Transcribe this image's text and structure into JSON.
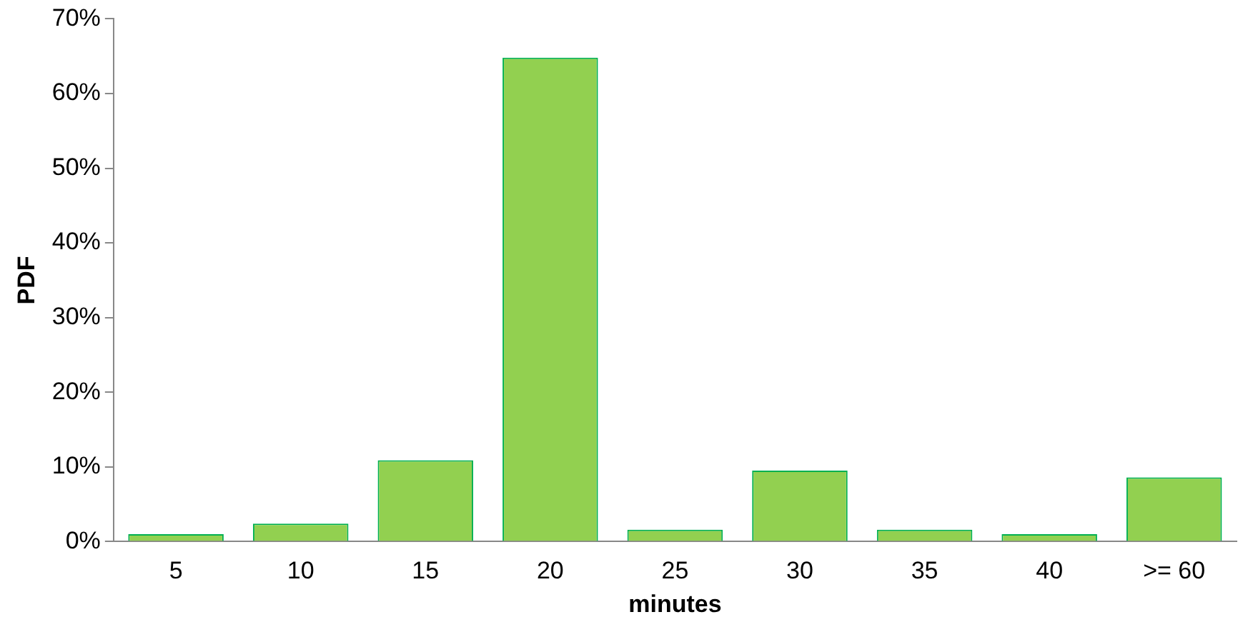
{
  "chart_data": {
    "type": "bar",
    "xlabel": "minutes",
    "ylabel": "PDF",
    "categories": [
      "5",
      "10",
      "15",
      "20",
      "25",
      "30",
      "35",
      "40",
      ">= 60"
    ],
    "values": [
      1.0,
      2.4,
      10.9,
      64.8,
      1.6,
      9.5,
      1.6,
      1.0,
      8.6
    ],
    "color": "#92d050",
    "ylim": [
      0,
      70
    ],
    "yticks": [
      {
        "value": 0,
        "label": "0%"
      },
      {
        "value": 10,
        "label": "10%"
      },
      {
        "value": 20,
        "label": "20%"
      },
      {
        "value": 30,
        "label": "30%"
      },
      {
        "value": 40,
        "label": "40%"
      },
      {
        "value": 50,
        "label": "50%"
      },
      {
        "value": 60,
        "label": "60%"
      },
      {
        "value": 70,
        "label": "70%"
      }
    ],
    "grid": false,
    "legend": false
  }
}
